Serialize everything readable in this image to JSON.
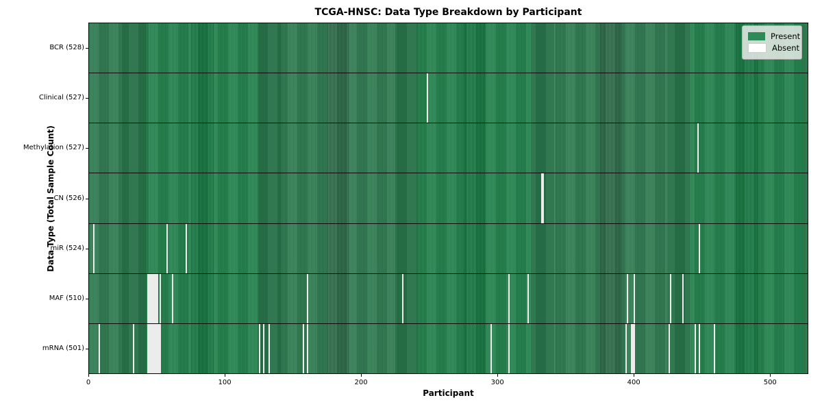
{
  "chart_data": {
    "type": "heatmap",
    "title": "TCGA-HNSC: Data Type Breakdown by Participant",
    "xlabel": "Participant",
    "ylabel": "Data Type (Total Sample Count)",
    "n_participants": 528,
    "x_ticks": [
      0,
      100,
      200,
      300,
      400,
      500
    ],
    "present_color": "#2e8b57",
    "absent_color": "#ffffff",
    "legend": [
      {
        "label": "Present",
        "color": "#2e8b57"
      },
      {
        "label": "Absent",
        "color": "#ffffff"
      }
    ],
    "rows": [
      {
        "label": "BCR (528)",
        "name": "BCR",
        "total": 528,
        "absent_participants": []
      },
      {
        "label": "Clinical (527)",
        "name": "Clinical",
        "total": 527,
        "absent_participants": [
          248
        ]
      },
      {
        "label": "Methylation (527)",
        "name": "Methylation",
        "total": 527,
        "absent_participants": [
          447
        ]
      },
      {
        "label": "CN (526)",
        "name": "CN",
        "total": 526,
        "absent_participants": [
          332,
          333
        ]
      },
      {
        "label": "miR (524)",
        "name": "miR",
        "total": 524,
        "absent_participants": [
          3,
          57,
          71,
          448
        ]
      },
      {
        "label": "MAF (510)",
        "name": "MAF",
        "total": 510,
        "absent_participants": [
          43,
          44,
          45,
          46,
          47,
          48,
          49,
          50,
          52,
          61,
          160,
          230,
          308,
          322,
          395,
          400,
          427,
          436
        ]
      },
      {
        "label": "mRNA (501)",
        "name": "mRNA",
        "total": 501,
        "absent_participants": [
          7,
          32,
          43,
          44,
          45,
          46,
          47,
          48,
          49,
          50,
          51,
          52,
          125,
          128,
          132,
          157,
          160,
          295,
          308,
          394,
          398,
          399,
          400,
          426,
          445,
          448,
          459
        ]
      }
    ]
  }
}
